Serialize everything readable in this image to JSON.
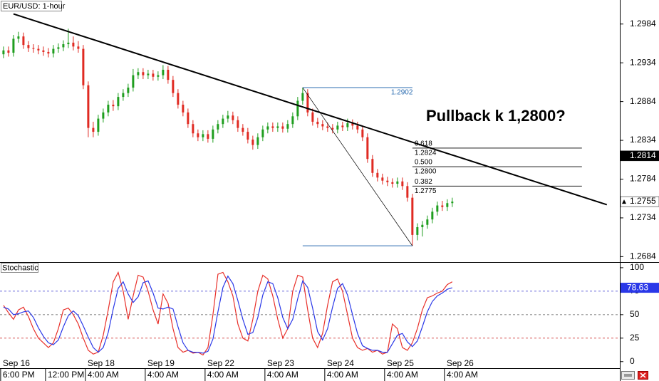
{
  "chart_data": [
    {
      "type": "candlestick",
      "title": "EUR/USD: 1-hour",
      "annotation": "Pullback k 1,2800?",
      "up_color": "#1f9e1f",
      "down_color": "#e02a22",
      "xlim": [
        -0.7,
        123.6
      ],
      "ylim": [
        1.2677,
        1.3015
      ],
      "yticks": [
        1.2684,
        1.2734,
        1.2784,
        1.2834,
        1.2884,
        1.2934,
        1.2984
      ],
      "open": [
        1.2945,
        1.295,
        1.2947,
        1.2965,
        1.2968,
        1.2957,
        1.2953,
        1.2952,
        1.295,
        1.2948,
        1.2946,
        1.2952,
        1.2954,
        1.2958,
        1.296,
        1.2955,
        1.2952,
        1.2905,
        1.285,
        1.2845,
        1.2862,
        1.287,
        1.288,
        1.2878,
        1.289,
        1.2895,
        1.2902,
        1.2918,
        1.2922,
        1.2918,
        1.292,
        1.2916,
        1.2918,
        1.2925,
        1.2912,
        1.2895,
        1.288,
        1.287,
        1.2855,
        1.2843,
        1.2838,
        1.2842,
        1.2836,
        1.2848,
        1.2855,
        1.2862,
        1.2866,
        1.286,
        1.285,
        1.2845,
        1.2835,
        1.2828,
        1.2838,
        1.2848,
        1.2852,
        1.285,
        1.2852,
        1.2849,
        1.2855,
        1.2865,
        1.2885,
        1.2895,
        1.287,
        1.2858,
        1.2855,
        1.2852,
        1.285,
        1.2848,
        1.2853,
        1.2851,
        1.2856,
        1.2853,
        1.2848,
        1.2838,
        1.281,
        1.2792,
        1.2786,
        1.2782,
        1.278,
        1.2778,
        1.2781,
        1.2775,
        1.276,
        1.2712,
        1.2722,
        1.2725,
        1.2732,
        1.2742,
        1.275,
        1.2748,
        1.2753
      ],
      "high": [
        1.2955,
        1.2955,
        1.297,
        1.2974,
        1.2973,
        1.2962,
        1.2958,
        1.2957,
        1.2955,
        1.2953,
        1.2957,
        1.2959,
        1.2963,
        1.2978,
        1.2968,
        1.2962,
        1.2957,
        1.291,
        1.2858,
        1.2867,
        1.2875,
        1.2885,
        1.2886,
        1.2895,
        1.29,
        1.2907,
        1.2926,
        1.2927,
        1.2927,
        1.2925,
        1.2925,
        1.2923,
        1.2931,
        1.293,
        1.2917,
        1.29,
        1.2885,
        1.2875,
        1.286,
        1.2848,
        1.2847,
        1.2847,
        1.2853,
        1.286,
        1.2867,
        1.2872,
        1.2871,
        1.2865,
        1.2855,
        1.285,
        1.284,
        1.2843,
        1.2853,
        1.2857,
        1.2857,
        1.2857,
        1.2857,
        1.286,
        1.287,
        1.289,
        1.2902,
        1.29,
        1.2875,
        1.2863,
        1.286,
        1.2857,
        1.2855,
        1.2858,
        1.2858,
        1.2862,
        1.2861,
        1.2858,
        1.2853,
        1.2843,
        1.2815,
        1.2797,
        1.2791,
        1.2787,
        1.2785,
        1.2786,
        1.2786,
        1.278,
        1.2765,
        1.2727,
        1.273,
        1.2737,
        1.2747,
        1.2755,
        1.2756,
        1.2758,
        1.276
      ],
      "low": [
        1.294,
        1.2942,
        1.2942,
        1.296,
        1.2952,
        1.2948,
        1.2947,
        1.2945,
        1.2943,
        1.2941,
        1.2941,
        1.2947,
        1.2949,
        1.2953,
        1.295,
        1.2947,
        1.29,
        1.2838,
        1.2838,
        1.284,
        1.2857,
        1.2865,
        1.2872,
        1.2873,
        1.2885,
        1.289,
        1.2897,
        1.2913,
        1.2913,
        1.2913,
        1.2911,
        1.2911,
        1.2913,
        1.2907,
        1.289,
        1.2875,
        1.2865,
        1.285,
        1.2838,
        1.2833,
        1.2833,
        1.2831,
        1.2831,
        1.2843,
        1.285,
        1.2857,
        1.2855,
        1.2845,
        1.284,
        1.283,
        1.2822,
        1.2823,
        1.2833,
        1.2843,
        1.2845,
        1.2845,
        1.2844,
        1.2844,
        1.285,
        1.286,
        1.288,
        1.2865,
        1.2853,
        1.285,
        1.2847,
        1.2845,
        1.2843,
        1.2843,
        1.2846,
        1.2846,
        1.2848,
        1.2843,
        1.2833,
        1.2805,
        1.2787,
        1.2781,
        1.2777,
        1.2775,
        1.2773,
        1.2773,
        1.277,
        1.2755,
        1.2698,
        1.2705,
        1.271,
        1.272,
        1.2727,
        1.2737,
        1.2743,
        1.2743,
        1.2748
      ],
      "close": [
        1.295,
        1.2947,
        1.2965,
        1.2968,
        1.2957,
        1.2953,
        1.2952,
        1.295,
        1.2948,
        1.2946,
        1.2952,
        1.2954,
        1.2958,
        1.296,
        1.2955,
        1.2952,
        1.2905,
        1.285,
        1.2845,
        1.2862,
        1.287,
        1.288,
        1.2878,
        1.289,
        1.2895,
        1.2902,
        1.2918,
        1.2922,
        1.2918,
        1.292,
        1.2916,
        1.2918,
        1.2925,
        1.2912,
        1.2895,
        1.288,
        1.287,
        1.2855,
        1.2843,
        1.2838,
        1.2842,
        1.2836,
        1.2848,
        1.2855,
        1.2862,
        1.2866,
        1.286,
        1.285,
        1.2845,
        1.2835,
        1.2828,
        1.2838,
        1.2848,
        1.2852,
        1.285,
        1.2852,
        1.2849,
        1.2855,
        1.2865,
        1.2885,
        1.2895,
        1.287,
        1.2858,
        1.2855,
        1.2852,
        1.285,
        1.2848,
        1.2853,
        1.2851,
        1.2856,
        1.2853,
        1.2848,
        1.2838,
        1.281,
        1.2792,
        1.2786,
        1.2782,
        1.278,
        1.2778,
        1.2781,
        1.2775,
        1.276,
        1.2712,
        1.2722,
        1.2725,
        1.2732,
        1.2742,
        1.275,
        1.2748,
        1.2753,
        1.2755
      ],
      "trendline": {
        "x": [
          2,
          121
        ],
        "y": [
          1.2997,
          1.2751
        ],
        "color": "#000000"
      },
      "fibonacci": {
        "start": 60,
        "end": 82,
        "extend_to": 116,
        "high": 1.2902,
        "low": 1.2698,
        "color": "#2b6cb0",
        "levels": [
          {
            "ratio": "0.618",
            "price": 1.2824
          },
          {
            "ratio": "0.500",
            "price": {
              "value": 1.28,
              "label": "1.2800"
            }
          },
          {
            "ratio": "0.382",
            "price": 1.2775
          }
        ]
      },
      "price_markers": [
        {
          "value": 1.2814,
          "color": "#000000",
          "text_color": "#ffffff"
        },
        {
          "value": 1.2755,
          "color": "#ffffff",
          "text_color": "#000000"
        }
      ]
    },
    {
      "type": "line",
      "title": "Stochastic",
      "xlim": [
        -0.7,
        123.6
      ],
      "ylim": [
        -7,
        106
      ],
      "yticks": [
        0,
        25,
        50,
        75,
        100
      ],
      "levels": [
        {
          "value": 75,
          "color": "#3a3ad0"
        },
        {
          "value": 50,
          "color": "#555555"
        },
        {
          "value": 25,
          "color": "#d03a3a"
        }
      ],
      "categories": [
        "Sep 16",
        null,
        null,
        null,
        null,
        null,
        null,
        null,
        null,
        null,
        null,
        null,
        null,
        null,
        null,
        null,
        null,
        "Sep 18",
        null,
        null,
        null,
        null,
        null,
        null,
        null,
        null,
        null,
        null,
        null,
        "Sep 19",
        null,
        null,
        null,
        null,
        null,
        null,
        null,
        null,
        null,
        null,
        null,
        "Sep 22",
        null,
        null,
        null,
        null,
        null,
        null,
        null,
        null,
        null,
        null,
        null,
        "Sep 23",
        null,
        null,
        null,
        null,
        null,
        null,
        null,
        null,
        null,
        null,
        null,
        "Sep 24",
        null,
        null,
        null,
        null,
        null,
        null,
        null,
        null,
        null,
        null,
        null,
        "Sep 25",
        null,
        null,
        null,
        null,
        null,
        null,
        null,
        null,
        null,
        null,
        null,
        "Sep 26",
        null
      ],
      "time_labels": [
        "6:00 PM",
        null,
        null,
        null,
        null,
        null,
        null,
        null,
        null,
        "12:00 PM",
        null,
        null,
        null,
        null,
        null,
        null,
        null,
        "4:00 AM",
        null,
        null,
        null,
        null,
        null,
        null,
        null,
        null,
        null,
        null,
        null,
        "4:00 AM",
        null,
        null,
        null,
        null,
        null,
        null,
        null,
        null,
        null,
        null,
        null,
        "4:00 AM",
        null,
        null,
        null,
        null,
        null,
        null,
        null,
        null,
        null,
        null,
        null,
        "4:00 AM",
        null,
        null,
        null,
        null,
        null,
        null,
        null,
        null,
        null,
        null,
        null,
        "4:00 AM",
        null,
        null,
        null,
        null,
        null,
        null,
        null,
        null,
        null,
        null,
        null,
        "4:00 AM",
        null,
        null,
        null,
        null,
        null,
        null,
        null,
        null,
        null,
        null,
        null,
        "4:00 AM",
        null
      ],
      "series": [
        {
          "color": "#e8302a",
          "values": [
            60,
            52,
            45,
            55,
            58,
            48,
            35,
            25,
            20,
            15,
            20,
            35,
            55,
            57,
            50,
            40,
            25,
            12,
            8,
            10,
            28,
            55,
            85,
            95,
            75,
            45,
            70,
            92,
            90,
            75,
            55,
            40,
            72,
            62,
            35,
            15,
            10,
            12,
            9,
            10,
            7,
            15,
            50,
            93,
            95,
            85,
            70,
            40,
            25,
            22,
            45,
            75,
            92,
            88,
            70,
            45,
            25,
            35,
            75,
            92,
            90,
            55,
            25,
            15,
            30,
            60,
            85,
            88,
            75,
            50,
            25,
            15,
            12,
            14,
            10,
            12,
            8,
            10,
            40,
            35,
            15,
            12,
            20,
            35,
            55,
            68,
            70,
            73,
            75,
            82,
            85
          ]
        },
        {
          "color": "#2a38e8",
          "values": [
            58,
            56,
            50,
            51,
            53,
            54,
            47,
            36,
            27,
            20,
            18,
            23,
            37,
            49,
            54,
            49,
            38,
            26,
            15,
            10,
            15,
            31,
            56,
            78,
            85,
            72,
            63,
            69,
            84,
            86,
            73,
            57,
            56,
            58,
            56,
            37,
            20,
            12,
            10,
            10,
            9,
            11,
            24,
            53,
            79,
            91,
            83,
            65,
            45,
            29,
            31,
            47,
            71,
            85,
            83,
            68,
            47,
            35,
            45,
            67,
            86,
            79,
            57,
            32,
            23,
            35,
            58,
            78,
            83,
            71,
            50,
            30,
            17,
            14,
            12,
            12,
            10,
            10,
            19,
            28,
            30,
            21,
            16,
            22,
            37,
            53,
            64,
            70,
            73,
            77,
            78.63
          ]
        }
      ]
    }
  ]
}
